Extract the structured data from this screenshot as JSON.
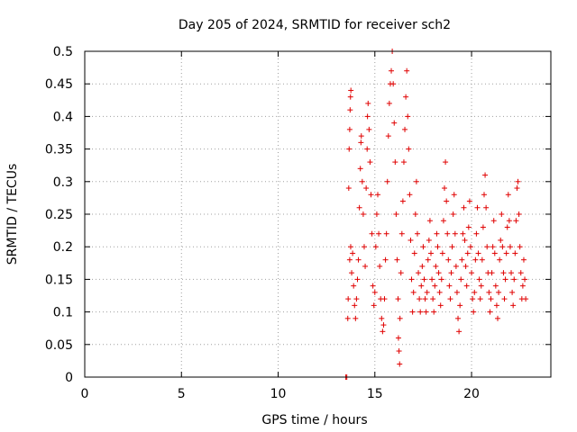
{
  "chart_data": {
    "type": "scatter",
    "title": "Day 205 of 2024, SRMTID for receiver sch2",
    "xlabel": "GPS time / hours",
    "ylabel": "SRMTID / TECUs",
    "xlim": [
      0,
      24.1
    ],
    "ylim": [
      0,
      0.5
    ],
    "xticks": [
      0,
      5,
      10,
      15,
      20
    ],
    "xtick_labels": [
      "0",
      "5",
      "10",
      "15",
      "20"
    ],
    "yticks": [
      0,
      0.05,
      0.1,
      0.15,
      0.2,
      0.25,
      0.3,
      0.35,
      0.4,
      0.45,
      0.5
    ],
    "ytick_labels": [
      "0",
      "0.05",
      "0.1",
      "0.15",
      "0.2",
      "0.25",
      "0.3",
      "0.35",
      "0.4",
      "0.45",
      "0.5"
    ],
    "grid": true,
    "marker": "plus",
    "color": "#e00000",
    "series": [
      {
        "name": "SRMTID",
        "points": [
          [
            13.5,
            0.0
          ],
          [
            13.55,
            0.0
          ],
          [
            13.6,
            0.09
          ],
          [
            13.62,
            0.12
          ],
          [
            13.65,
            0.29
          ],
          [
            13.67,
            0.35
          ],
          [
            13.7,
            0.38
          ],
          [
            13.72,
            0.41
          ],
          [
            13.74,
            0.43
          ],
          [
            13.76,
            0.44
          ],
          [
            13.7,
            0.18
          ],
          [
            13.75,
            0.2
          ],
          [
            13.8,
            0.16
          ],
          [
            13.85,
            0.19
          ],
          [
            13.9,
            0.14
          ],
          [
            13.95,
            0.11
          ],
          [
            14.0,
            0.09
          ],
          [
            14.05,
            0.12
          ],
          [
            14.1,
            0.15
          ],
          [
            14.15,
            0.18
          ],
          [
            14.2,
            0.26
          ],
          [
            14.25,
            0.32
          ],
          [
            14.28,
            0.36
          ],
          [
            14.3,
            0.37
          ],
          [
            14.35,
            0.3
          ],
          [
            14.4,
            0.25
          ],
          [
            14.45,
            0.2
          ],
          [
            14.5,
            0.17
          ],
          [
            14.55,
            0.29
          ],
          [
            14.6,
            0.35
          ],
          [
            14.62,
            0.4
          ],
          [
            14.65,
            0.42
          ],
          [
            14.7,
            0.38
          ],
          [
            14.75,
            0.33
          ],
          [
            14.8,
            0.28
          ],
          [
            14.85,
            0.22
          ],
          [
            14.9,
            0.14
          ],
          [
            14.95,
            0.11
          ],
          [
            15.0,
            0.13
          ],
          [
            15.05,
            0.2
          ],
          [
            15.1,
            0.25
          ],
          [
            15.15,
            0.28
          ],
          [
            15.2,
            0.22
          ],
          [
            15.25,
            0.17
          ],
          [
            15.3,
            0.12
          ],
          [
            15.35,
            0.09
          ],
          [
            15.4,
            0.07
          ],
          [
            15.45,
            0.08
          ],
          [
            15.5,
            0.12
          ],
          [
            15.55,
            0.18
          ],
          [
            15.6,
            0.22
          ],
          [
            15.65,
            0.3
          ],
          [
            15.7,
            0.37
          ],
          [
            15.75,
            0.42
          ],
          [
            15.8,
            0.45
          ],
          [
            15.85,
            0.47
          ],
          [
            15.9,
            0.5
          ],
          [
            15.95,
            0.45
          ],
          [
            16.0,
            0.39
          ],
          [
            16.05,
            0.33
          ],
          [
            16.1,
            0.25
          ],
          [
            16.15,
            0.18
          ],
          [
            16.2,
            0.12
          ],
          [
            16.22,
            0.06
          ],
          [
            16.25,
            0.04
          ],
          [
            16.28,
            0.02
          ],
          [
            16.3,
            0.09
          ],
          [
            16.35,
            0.16
          ],
          [
            16.4,
            0.22
          ],
          [
            16.45,
            0.27
          ],
          [
            16.5,
            0.33
          ],
          [
            16.55,
            0.38
          ],
          [
            16.6,
            0.43
          ],
          [
            16.65,
            0.47
          ],
          [
            16.7,
            0.4
          ],
          [
            16.75,
            0.35
          ],
          [
            16.8,
            0.28
          ],
          [
            16.85,
            0.21
          ],
          [
            16.9,
            0.15
          ],
          [
            16.95,
            0.1
          ],
          [
            17.0,
            0.13
          ],
          [
            17.05,
            0.19
          ],
          [
            17.1,
            0.25
          ],
          [
            17.15,
            0.3
          ],
          [
            17.2,
            0.22
          ],
          [
            17.25,
            0.16
          ],
          [
            17.3,
            0.12
          ],
          [
            17.35,
            0.1
          ],
          [
            17.4,
            0.14
          ],
          [
            17.45,
            0.17
          ],
          [
            17.5,
            0.2
          ],
          [
            17.55,
            0.15
          ],
          [
            17.6,
            0.12
          ],
          [
            17.65,
            0.1
          ],
          [
            17.7,
            0.13
          ],
          [
            17.75,
            0.18
          ],
          [
            17.8,
            0.21
          ],
          [
            17.85,
            0.24
          ],
          [
            17.9,
            0.19
          ],
          [
            17.95,
            0.15
          ],
          [
            18.0,
            0.12
          ],
          [
            18.05,
            0.1
          ],
          [
            18.1,
            0.14
          ],
          [
            18.15,
            0.17
          ],
          [
            18.2,
            0.22
          ],
          [
            18.25,
            0.2
          ],
          [
            18.3,
            0.16
          ],
          [
            18.35,
            0.13
          ],
          [
            18.4,
            0.11
          ],
          [
            18.45,
            0.15
          ],
          [
            18.5,
            0.19
          ],
          [
            18.55,
            0.24
          ],
          [
            18.6,
            0.29
          ],
          [
            18.65,
            0.33
          ],
          [
            18.7,
            0.27
          ],
          [
            18.75,
            0.22
          ],
          [
            18.8,
            0.18
          ],
          [
            18.85,
            0.14
          ],
          [
            18.9,
            0.12
          ],
          [
            18.95,
            0.16
          ],
          [
            19.0,
            0.2
          ],
          [
            19.05,
            0.25
          ],
          [
            19.1,
            0.28
          ],
          [
            19.15,
            0.22
          ],
          [
            19.2,
            0.17
          ],
          [
            19.25,
            0.13
          ],
          [
            19.3,
            0.09
          ],
          [
            19.35,
            0.07
          ],
          [
            19.4,
            0.11
          ],
          [
            19.45,
            0.15
          ],
          [
            19.5,
            0.18
          ],
          [
            19.55,
            0.22
          ],
          [
            19.6,
            0.26
          ],
          [
            19.65,
            0.21
          ],
          [
            19.7,
            0.17
          ],
          [
            19.75,
            0.14
          ],
          [
            19.8,
            0.19
          ],
          [
            19.85,
            0.23
          ],
          [
            19.9,
            0.27
          ],
          [
            19.95,
            0.2
          ],
          [
            20.0,
            0.16
          ],
          [
            20.05,
            0.12
          ],
          [
            20.1,
            0.1
          ],
          [
            20.15,
            0.13
          ],
          [
            20.2,
            0.18
          ],
          [
            20.25,
            0.22
          ],
          [
            20.3,
            0.26
          ],
          [
            20.35,
            0.19
          ],
          [
            20.4,
            0.15
          ],
          [
            20.45,
            0.12
          ],
          [
            20.5,
            0.14
          ],
          [
            20.55,
            0.18
          ],
          [
            20.6,
            0.23
          ],
          [
            20.65,
            0.28
          ],
          [
            20.7,
            0.31
          ],
          [
            20.75,
            0.26
          ],
          [
            20.8,
            0.2
          ],
          [
            20.85,
            0.16
          ],
          [
            20.9,
            0.13
          ],
          [
            20.95,
            0.1
          ],
          [
            21.0,
            0.12
          ],
          [
            21.05,
            0.16
          ],
          [
            21.1,
            0.2
          ],
          [
            21.15,
            0.24
          ],
          [
            21.2,
            0.19
          ],
          [
            21.25,
            0.14
          ],
          [
            21.3,
            0.11
          ],
          [
            21.35,
            0.09
          ],
          [
            21.4,
            0.13
          ],
          [
            21.45,
            0.18
          ],
          [
            21.5,
            0.21
          ],
          [
            21.55,
            0.25
          ],
          [
            21.6,
            0.2
          ],
          [
            21.65,
            0.16
          ],
          [
            21.7,
            0.12
          ],
          [
            21.75,
            0.15
          ],
          [
            21.8,
            0.19
          ],
          [
            21.85,
            0.23
          ],
          [
            21.9,
            0.28
          ],
          [
            21.95,
            0.24
          ],
          [
            22.0,
            0.2
          ],
          [
            22.05,
            0.16
          ],
          [
            22.1,
            0.13
          ],
          [
            22.15,
            0.11
          ],
          [
            22.2,
            0.15
          ],
          [
            22.25,
            0.19
          ],
          [
            22.3,
            0.24
          ],
          [
            22.35,
            0.29
          ],
          [
            22.4,
            0.3
          ],
          [
            22.45,
            0.25
          ],
          [
            22.5,
            0.2
          ],
          [
            22.55,
            0.16
          ],
          [
            22.6,
            0.12
          ],
          [
            22.65,
            0.14
          ],
          [
            22.7,
            0.18
          ],
          [
            22.75,
            0.15
          ],
          [
            22.8,
            0.12
          ]
        ]
      }
    ]
  }
}
